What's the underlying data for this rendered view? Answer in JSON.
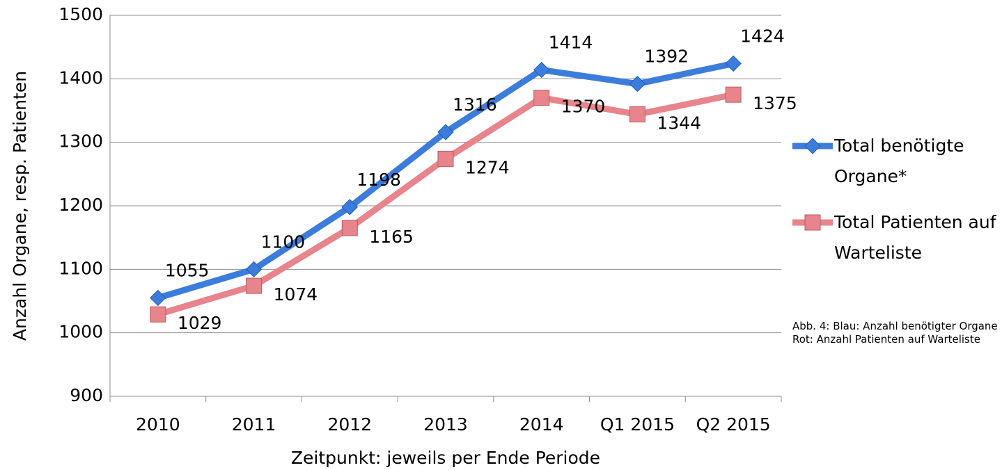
{
  "chart_data": {
    "type": "line",
    "categories": [
      "2010",
      "2011",
      "2012",
      "2013",
      "2014",
      "Q1 2015",
      "Q2 2015"
    ],
    "series": [
      {
        "name": "Total benötigte Organe*",
        "color": "#3c7ddc",
        "marker": "diamond",
        "values": [
          1055,
          1100,
          1198,
          1316,
          1414,
          1392,
          1424
        ]
      },
      {
        "name": "Total Patienten auf Warteliste",
        "color": "#e8848c",
        "marker": "square",
        "values": [
          1029,
          1074,
          1165,
          1274,
          1370,
          1344,
          1375
        ]
      }
    ],
    "ylim": [
      900,
      1500
    ],
    "yticks": [
      900,
      1000,
      1100,
      1200,
      1300,
      1400,
      1500
    ],
    "grid": true,
    "x_label": "Zeitpunkt: jeweils per Ende Periode",
    "y_label": "Anzahl Organe, resp. Patienten",
    "legend": "right",
    "annotations": [
      "Abb. 4: Blau: Anzahl benötigter Organe",
      "Rot: Anzahl Patienten auf Warteliste"
    ]
  }
}
